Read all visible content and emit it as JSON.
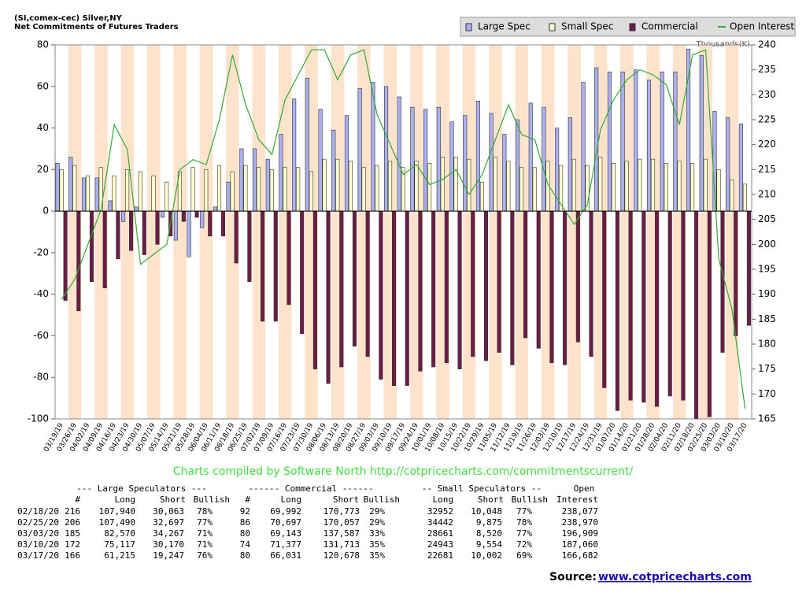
{
  "chart_data": {
    "type": "bar",
    "title": "(SI,comex-cec) Silver,NY",
    "subtitle": "Net Commitments of Futures Traders",
    "y2_label": "Thousands(K)",
    "credit": "Charts compiled by Software North  http://cotpricecharts.com/commitmentscurrent/",
    "categories": [
      "03/19/19",
      "03/26/19",
      "04/02/19",
      "04/09/19",
      "04/16/19",
      "04/23/19",
      "04/30/19",
      "05/07/19",
      "05/14/19",
      "05/21/19",
      "05/28/19",
      "06/04/19",
      "06/11/19",
      "06/18/19",
      "06/25/19",
      "07/02/19",
      "07/09/19",
      "07/16/19",
      "07/23/19",
      "07/30/19",
      "08/06/19",
      "08/13/19",
      "08/20/19",
      "08/27/19",
      "09/03/19",
      "09/10/19",
      "09/17/19",
      "09/24/19",
      "10/01/19",
      "10/08/19",
      "10/15/19",
      "10/22/19",
      "10/29/19",
      "11/05/19",
      "11/12/19",
      "11/19/19",
      "11/26/19",
      "12/03/19",
      "12/10/19",
      "12/17/19",
      "12/24/19",
      "12/31/19",
      "01/07/20",
      "01/14/20",
      "01/21/20",
      "01/28/20",
      "02/04/20",
      "02/11/20",
      "02/18/20",
      "02/25/20",
      "03/03/20",
      "03/10/20",
      "03/17/20"
    ],
    "series": [
      {
        "name": "Large Spec",
        "color": "#aab0f0",
        "values": [
          23,
          26,
          16,
          16,
          5,
          -5,
          2,
          0,
          -3,
          -14,
          -22,
          -8,
          2,
          14,
          30,
          30,
          25,
          37,
          54,
          64,
          49,
          39,
          46,
          59,
          62,
          60,
          55,
          50,
          49,
          50,
          43,
          46,
          53,
          47,
          37,
          44,
          52,
          50,
          40,
          45,
          62,
          69,
          67,
          67,
          68,
          63,
          67,
          67,
          78,
          75,
          48,
          45,
          42
        ]
      },
      {
        "name": "Small Spec",
        "color": "#ffffcc",
        "values": [
          20,
          22,
          17,
          21,
          17,
          20,
          19,
          17,
          14,
          19,
          21,
          20,
          22,
          19,
          22,
          21,
          20,
          21,
          21,
          19,
          25,
          25,
          24,
          21,
          22,
          24,
          21,
          24,
          23,
          26,
          26,
          25,
          14,
          26,
          24,
          21,
          21,
          24,
          22,
          25,
          22,
          26,
          23,
          24,
          25,
          25,
          23,
          24,
          23,
          25,
          20,
          15,
          13
        ]
      },
      {
        "name": "Commercial",
        "color": "#6b1d45",
        "values": [
          -43,
          -48,
          -34,
          -37,
          -23,
          -19,
          -21,
          -16,
          -12,
          -5,
          -3,
          -12,
          -12,
          -25,
          -34,
          -53,
          -53,
          -45,
          -59,
          -76,
          -83,
          -75,
          -65,
          -70,
          -81,
          -84,
          -84,
          -77,
          -75,
          -73,
          -76,
          -70,
          -72,
          -68,
          -74,
          -61,
          -66,
          -73,
          -74,
          -63,
          -70,
          -85,
          -96,
          -91,
          -92,
          -94,
          -89,
          -91,
          -101,
          -99,
          -68,
          -60,
          -55
        ]
      },
      {
        "name": "Open Interest",
        "color": "#33aa33",
        "axis": "y2",
        "values": [
          189,
          193,
          200,
          207,
          224,
          219,
          196,
          198,
          200,
          215,
          217,
          216,
          225,
          238,
          228,
          221,
          218,
          229,
          234,
          239,
          239,
          233,
          238,
          239,
          226,
          220,
          214,
          216,
          212,
          213,
          215,
          210,
          214,
          221,
          228,
          222,
          221,
          212,
          208,
          204,
          208,
          223,
          229,
          233,
          235,
          234,
          232,
          224,
          238,
          239,
          197,
          187,
          167
        ]
      }
    ],
    "ylim": [
      -100,
      80
    ],
    "yticks": [
      -100,
      -80,
      -60,
      -40,
      -20,
      0,
      20,
      40,
      60,
      80
    ],
    "y2lim": [
      165,
      240
    ],
    "y2ticks": [
      165,
      170,
      175,
      180,
      185,
      190,
      195,
      200,
      205,
      210,
      215,
      220,
      225,
      230,
      235,
      240
    ],
    "legend": "top-right"
  },
  "table": {
    "group_headers": [
      "--- Large Speculators ---",
      "------ Commercial ------",
      "-- Small Speculators --",
      "Open"
    ],
    "columns": [
      "#",
      "Long",
      "Short",
      "Bullish",
      "#",
      "Long",
      "Short",
      "Bullish",
      "Long",
      "Short",
      "Bullish",
      "Interest"
    ],
    "rows": [
      [
        "02/18/20",
        "216",
        "107,940",
        "30,063",
        "78%",
        "92",
        "69,992",
        "170,773",
        "29%",
        "32952",
        "10,048",
        "77%",
        "238,077"
      ],
      [
        "02/25/20",
        "206",
        "107,490",
        "32,697",
        "77%",
        "86",
        "70,697",
        "170,057",
        "29%",
        "34442",
        "9,875",
        "78%",
        "238,970"
      ],
      [
        "03/03/20",
        "185",
        "82,570",
        "34,267",
        "71%",
        "80",
        "69,143",
        "137,587",
        "33%",
        "28661",
        "8,520",
        "77%",
        "196,909"
      ],
      [
        "03/10/20",
        "172",
        "75,117",
        "30,170",
        "71%",
        "74",
        "71,377",
        "131,713",
        "35%",
        "24943",
        "9,554",
        "72%",
        "187,060"
      ],
      [
        "03/17/20",
        "166",
        "61,215",
        "19,247",
        "76%",
        "80",
        "66,031",
        "120,678",
        "35%",
        "22681",
        "10,002",
        "69%",
        "166,682"
      ]
    ]
  },
  "source": {
    "label": "Source:",
    "link": "www.cotpricecharts.com"
  }
}
